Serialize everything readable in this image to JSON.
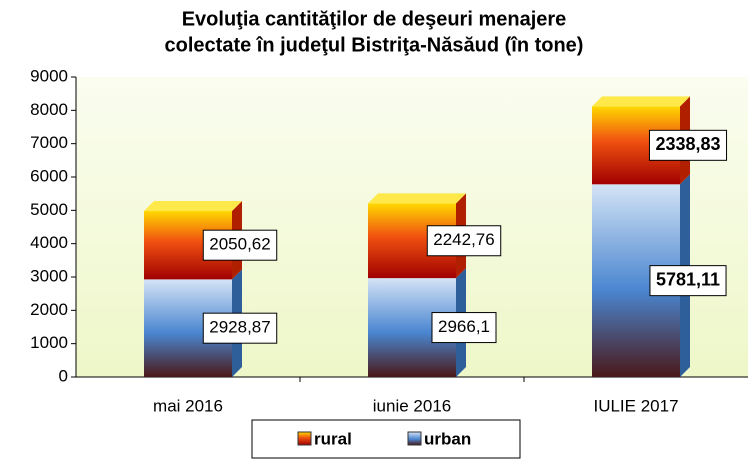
{
  "chart_data": {
    "type": "stacked_bar",
    "title": [
      "Evoluţia cantităţilor de deşeuri menajere",
      "colectate în judeţul Bistriţa-Năsăud (în tone)"
    ],
    "categories": [
      "mai 2016",
      "iunie 2016",
      "IULIE 2017"
    ],
    "series": [
      {
        "name": "urban",
        "color": "#4a86d0",
        "values": [
          2928.87,
          2966.1,
          5781.11
        ],
        "value_labels": [
          "2928,87",
          "2966,1",
          "5781,11"
        ]
      },
      {
        "name": "rural",
        "color": "#e8400c",
        "values": [
          2050.62,
          2242.76,
          2338.83
        ],
        "value_labels": [
          "2050,62",
          "2242,76",
          "2338,83"
        ]
      }
    ],
    "ylim": [
      0,
      9000
    ],
    "yticks": [
      0,
      1000,
      2000,
      3000,
      4000,
      5000,
      6000,
      7000,
      8000,
      9000
    ],
    "bold_category": 2
  }
}
